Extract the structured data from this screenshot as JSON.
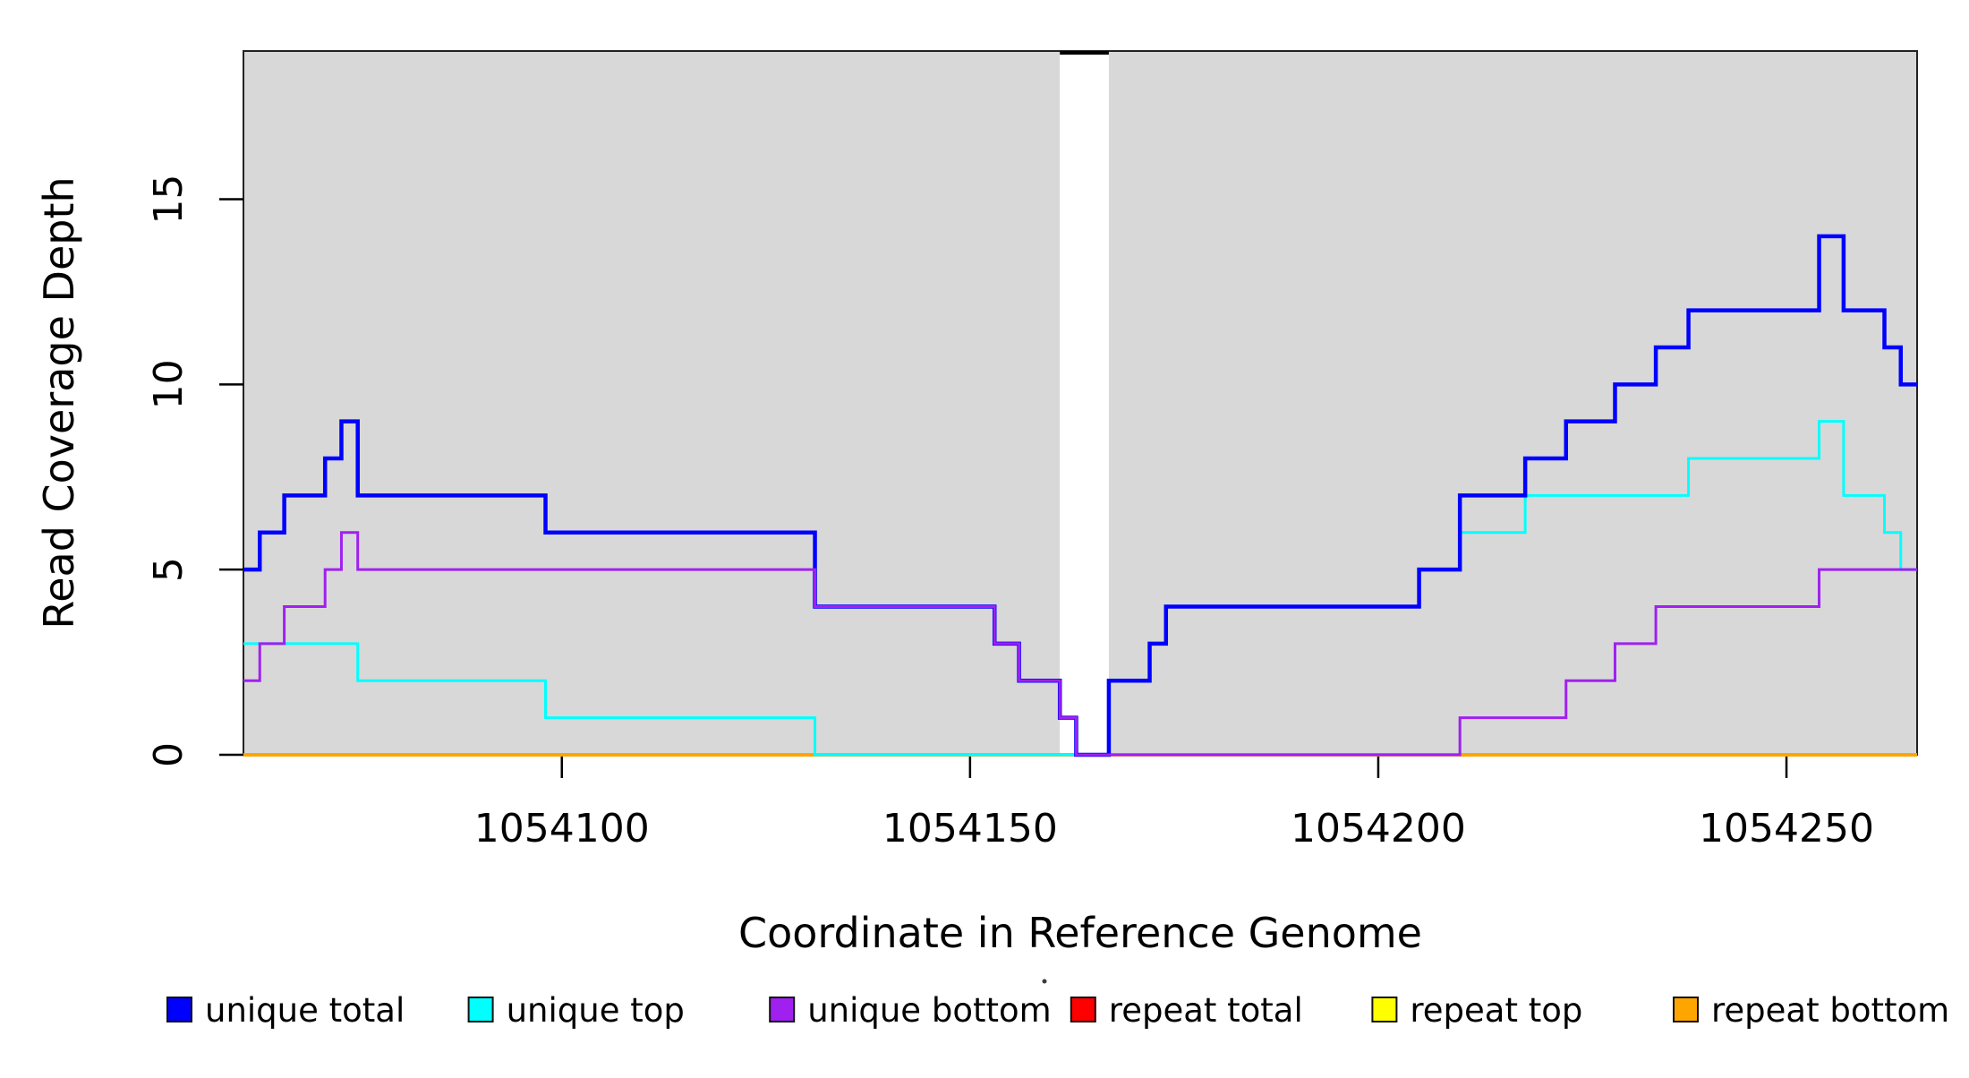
{
  "figure": {
    "xlabel": "Coordinate in Reference Genome",
    "ylabel": "Read Coverage Depth",
    "background": "#FFFFFF",
    "plot_background": "#D8D8D8",
    "axis_color": "#000000",
    "xlim": [
      1054061,
      1054266
    ],
    "ylim": [
      0,
      19
    ],
    "x_tick_labels": [
      "1054100",
      "1054150",
      "1054200",
      "1054250"
    ],
    "x_tick_values": [
      1054100,
      1054150,
      1054200,
      1054250
    ],
    "y_tick_labels": [
      "0",
      "5",
      "10",
      "15"
    ],
    "y_tick_values": [
      0,
      5,
      10,
      15
    ],
    "coverage_gap": [
      1054161,
      1054167
    ],
    "gap_top_bar_color": "#000000",
    "stray_dot": true
  },
  "chart_data": {
    "type": "line",
    "style": "step",
    "title": "",
    "xlabel": "Coordinate in Reference Genome",
    "ylabel": "Read Coverage Depth",
    "xlim": [
      1054061,
      1054266
    ],
    "ylim": [
      0,
      19
    ],
    "grid": false,
    "legend_position": "bottom",
    "gap_region": [
      1054161,
      1054167
    ],
    "series": [
      {
        "name": "repeat total",
        "color": "#FF0000",
        "line_width": 3,
        "points": [
          [
            1054061,
            0
          ],
          [
            1054266,
            0
          ]
        ]
      },
      {
        "name": "repeat top",
        "color": "#FFFF00",
        "line_width": 3,
        "points": [
          [
            1054061,
            0
          ],
          [
            1054266,
            0
          ]
        ]
      },
      {
        "name": "repeat bottom",
        "color": "#FFA500",
        "line_width": 4,
        "points": [
          [
            1054061,
            0
          ],
          [
            1054266,
            0
          ]
        ]
      },
      {
        "name": "unique top",
        "color": "#00FFFF",
        "line_width": 3,
        "points": [
          [
            1054061,
            3
          ],
          [
            1054075,
            2
          ],
          [
            1054098,
            1
          ],
          [
            1054131,
            0
          ],
          [
            1054167,
            2
          ],
          [
            1054172,
            3
          ],
          [
            1054174,
            4
          ],
          [
            1054205,
            5
          ],
          [
            1054210,
            6
          ],
          [
            1054218,
            7
          ],
          [
            1054238,
            8
          ],
          [
            1054254,
            9
          ],
          [
            1054257,
            7
          ],
          [
            1054262,
            6
          ],
          [
            1054264,
            5
          ],
          [
            1054266,
            5
          ]
        ]
      },
      {
        "name": "unique total",
        "color": "#0000FF",
        "line_width": 4.5,
        "points": [
          [
            1054061,
            5
          ],
          [
            1054063,
            6
          ],
          [
            1054066,
            7
          ],
          [
            1054071,
            8
          ],
          [
            1054073,
            9
          ],
          [
            1054075,
            7
          ],
          [
            1054098,
            6
          ],
          [
            1054131,
            4
          ],
          [
            1054153,
            3
          ],
          [
            1054156,
            2
          ],
          [
            1054161,
            1
          ],
          [
            1054163,
            0
          ],
          [
            1054167,
            2
          ],
          [
            1054172,
            3
          ],
          [
            1054174,
            4
          ],
          [
            1054205,
            5
          ],
          [
            1054210,
            7
          ],
          [
            1054218,
            8
          ],
          [
            1054223,
            9
          ],
          [
            1054229,
            10
          ],
          [
            1054234,
            11
          ],
          [
            1054238,
            12
          ],
          [
            1054254,
            14
          ],
          [
            1054257,
            12
          ],
          [
            1054262,
            11
          ],
          [
            1054264,
            10
          ],
          [
            1054266,
            10
          ]
        ]
      },
      {
        "name": "unique bottom",
        "color": "#A020F0",
        "line_width": 3,
        "points": [
          [
            1054061,
            2
          ],
          [
            1054063,
            3
          ],
          [
            1054066,
            4
          ],
          [
            1054071,
            5
          ],
          [
            1054073,
            6
          ],
          [
            1054075,
            5
          ],
          [
            1054131,
            4
          ],
          [
            1054153,
            3
          ],
          [
            1054156,
            2
          ],
          [
            1054161,
            1
          ],
          [
            1054163,
            0
          ],
          [
            1054210,
            1
          ],
          [
            1054223,
            2
          ],
          [
            1054229,
            3
          ],
          [
            1054234,
            4
          ],
          [
            1054254,
            5
          ],
          [
            1054266,
            5
          ]
        ]
      }
    ]
  },
  "legend": {
    "items": [
      {
        "label": "unique total",
        "color": "#0000FF"
      },
      {
        "label": "unique top",
        "color": "#00FFFF"
      },
      {
        "label": "unique bottom",
        "color": "#A020F0"
      },
      {
        "label": "repeat total",
        "color": "#FF0000"
      },
      {
        "label": "repeat top",
        "color": "#FFFF00"
      },
      {
        "label": "repeat bottom",
        "color": "#FFA500"
      }
    ]
  }
}
